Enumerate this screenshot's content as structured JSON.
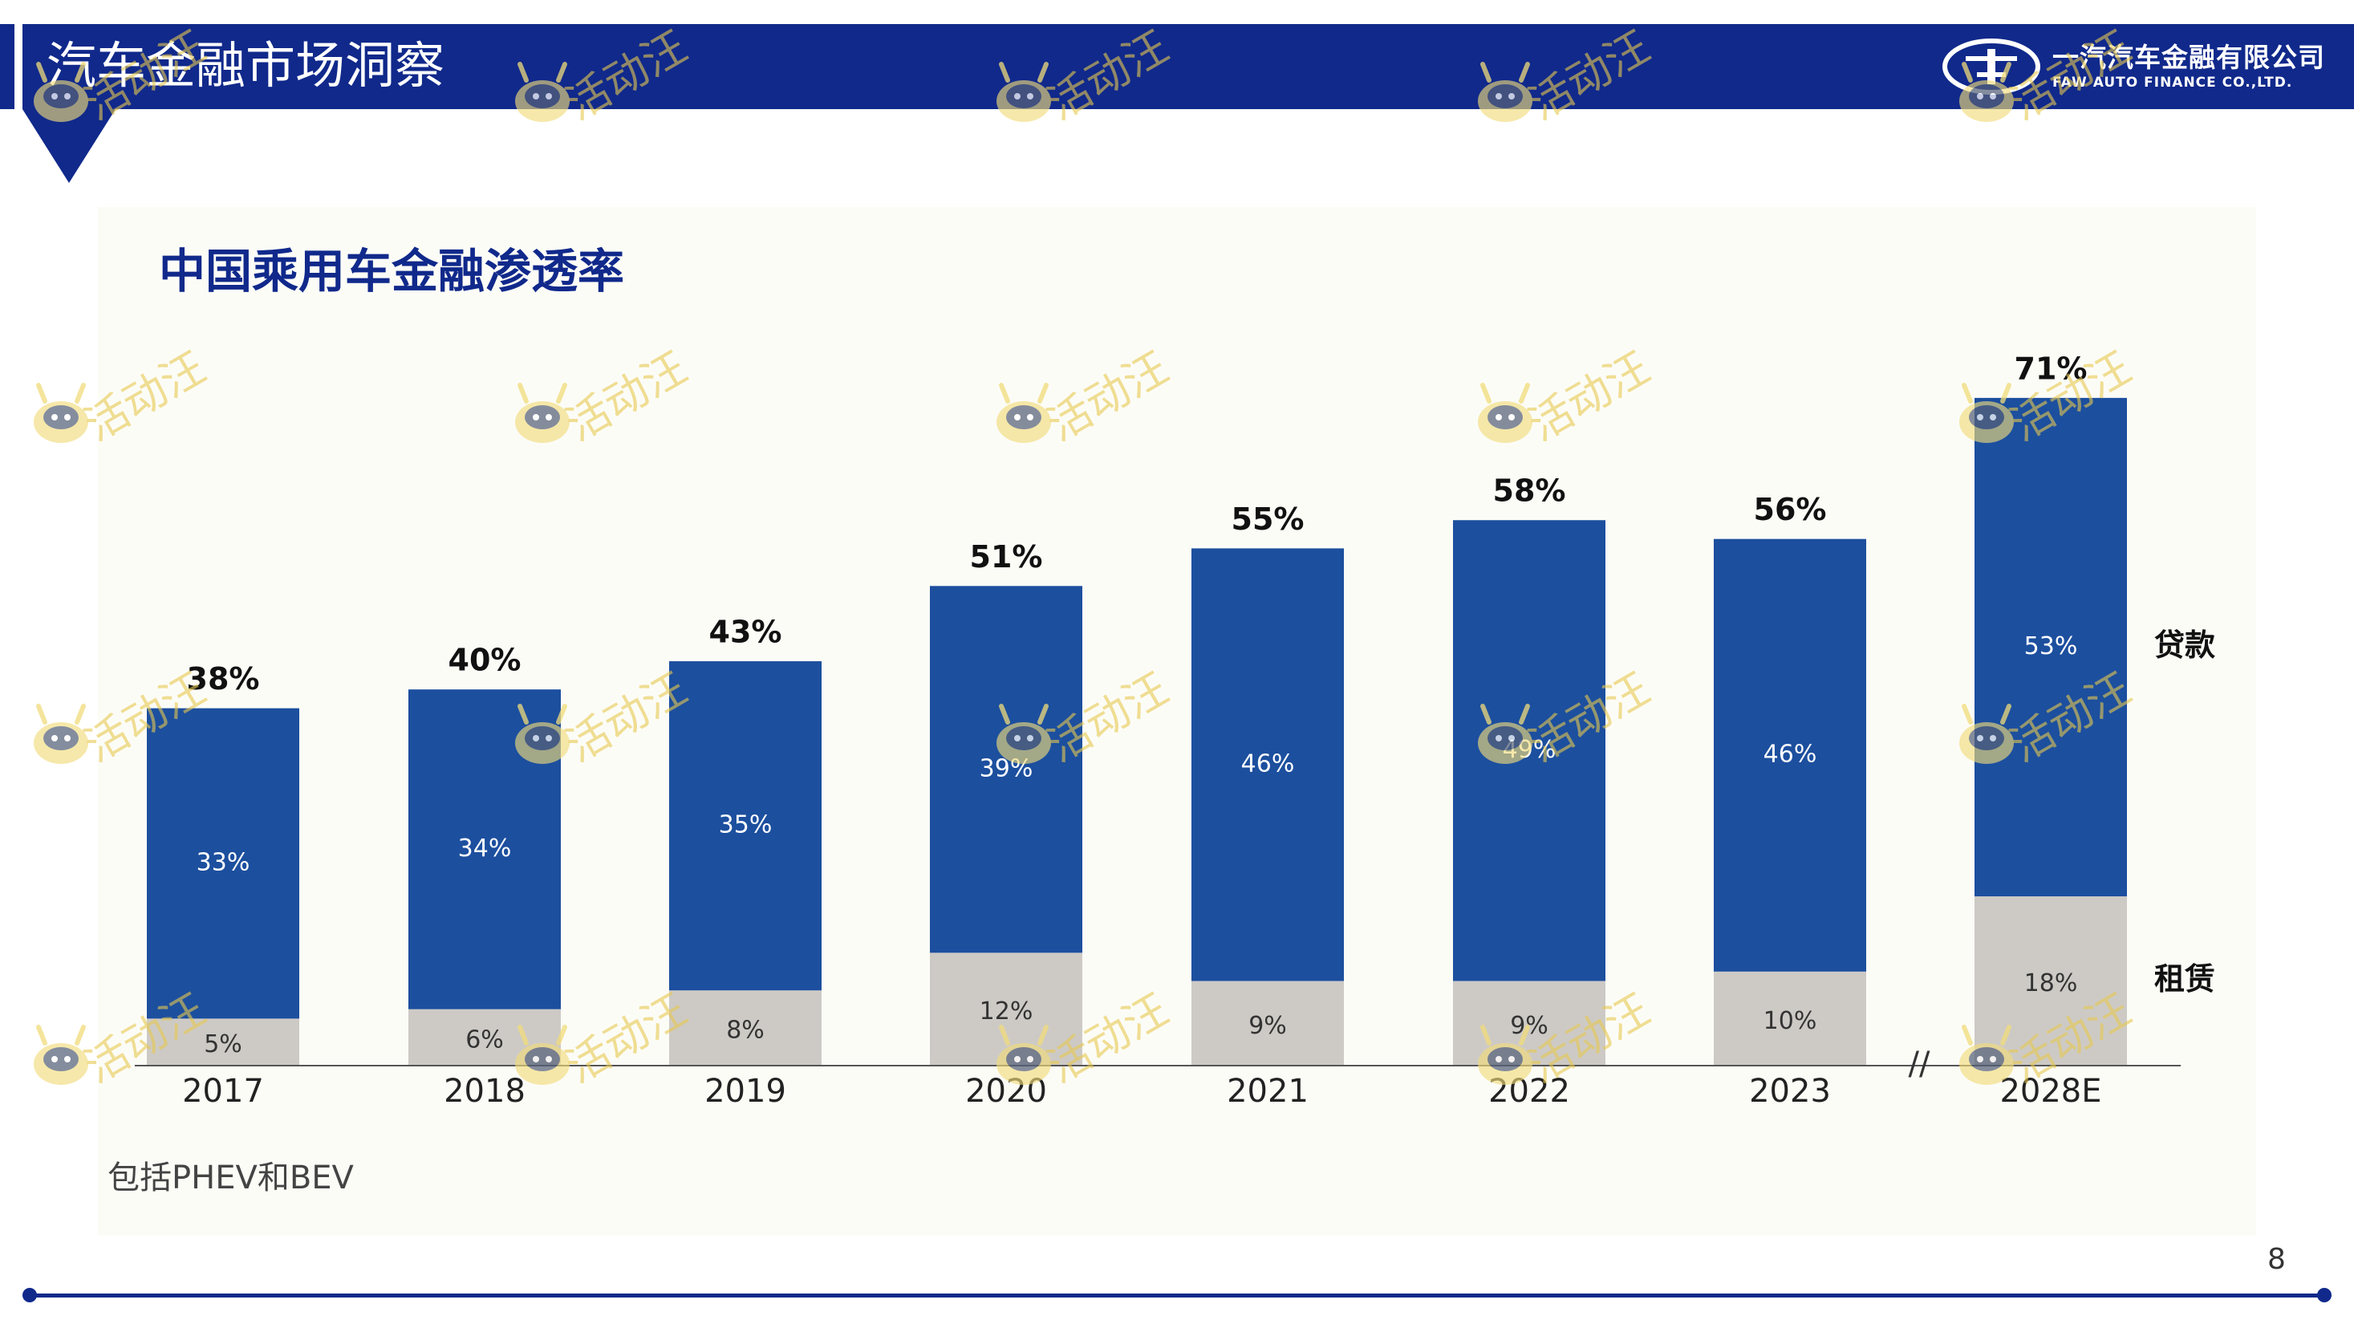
{
  "header": {
    "title": "汽车金融市场洞察",
    "logo_cn": "一汽汽车金融有限公司",
    "logo_en": "FAW AUTO FINANCE CO.,LTD."
  },
  "watermark_text": "活动汪",
  "footnote": "包括PHEV和BEV",
  "page_number": "8",
  "colors": {
    "brand_navy": "#10298b",
    "loan": "#1c4f9e",
    "lease": "#cdcac6",
    "panel": "#fcfcf7",
    "watermark": "#e7c94f"
  },
  "chart_data": {
    "type": "bar",
    "stacked": true,
    "title": "中国乘用车金融渗透率",
    "categories": [
      "2017",
      "2018",
      "2019",
      "2020",
      "2021",
      "2022",
      "2023",
      "2028E"
    ],
    "axis_break_before": "2028E",
    "axis_break_label": "//",
    "series": [
      {
        "name": "租赁",
        "color": "#cdcac6",
        "values": [
          5,
          6,
          8,
          12,
          9,
          9,
          10,
          18
        ],
        "labels": [
          "5%",
          "6%",
          "8%",
          "12%",
          "9%",
          "9%",
          "10%",
          "18%"
        ]
      },
      {
        "name": "贷款",
        "color": "#1c4f9e",
        "values": [
          33,
          34,
          35,
          39,
          46,
          49,
          46,
          53
        ],
        "labels": [
          "33%",
          "34%",
          "35%",
          "39%",
          "46%",
          "49%",
          "46%",
          "53%"
        ]
      }
    ],
    "totals": [
      38,
      40,
      43,
      51,
      55,
      58,
      56,
      71
    ],
    "total_labels": [
      "38%",
      "40%",
      "43%",
      "51%",
      "55%",
      "58%",
      "56%",
      "71%"
    ],
    "ylim": [
      0,
      80
    ],
    "grid": false,
    "legend": "right"
  }
}
